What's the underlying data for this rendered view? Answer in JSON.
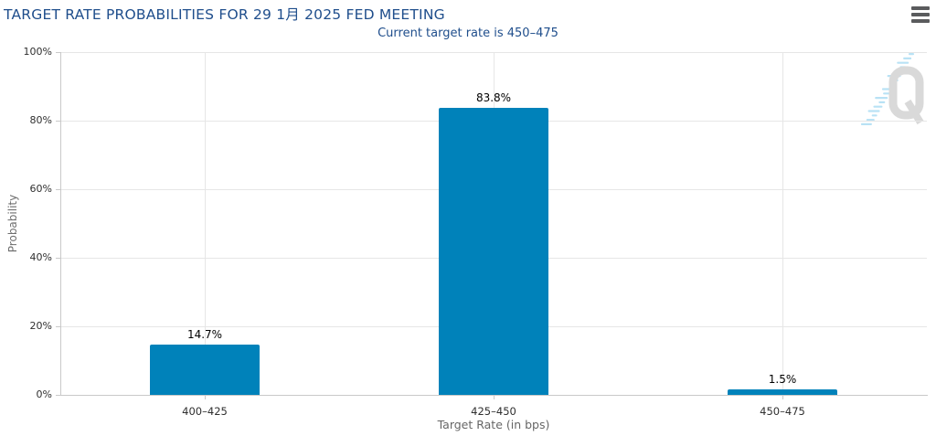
{
  "header": {
    "title": "TARGET RATE PROBABILITIES FOR 29 1月 2025 FED MEETING",
    "subtitle": "Current target rate is 450–475"
  },
  "menu": {
    "icon": "hamburger-icon"
  },
  "watermark": {
    "letter": "Q",
    "style": "gray outline Q with light-blue diagonal dashes"
  },
  "colors": {
    "bar": "#0082ba",
    "title_text": "#1f4e8c",
    "tick_text": "#2f2f2f",
    "axis_title_text": "#666666",
    "grid": "#e6e6e6",
    "axis_line": "#c9c9c9",
    "menu_icon": "#5a5b5d",
    "watermark_q": "#d9d9d9",
    "watermark_dashes": "#b9e2f5"
  },
  "chart_data": {
    "type": "bar",
    "title": "TARGET RATE PROBABILITIES FOR 29 1月 2025 FED MEETING",
    "subtitle": "Current target rate is 450–475",
    "categories": [
      "400–425",
      "425–450",
      "450–475"
    ],
    "values": [
      14.7,
      83.8,
      1.5
    ],
    "data_labels": [
      "14.7%",
      "83.8%",
      "1.5%"
    ],
    "xlabel": "Target Rate (in bps)",
    "ylabel": "Probability",
    "ylim": [
      0,
      100
    ],
    "yticks": [
      0,
      20,
      40,
      60,
      80,
      100
    ],
    "ytick_labels": [
      "0%",
      "20%",
      "40%",
      "60%",
      "80%",
      "100%"
    ],
    "grid": true,
    "legend": "none",
    "bar_color": "#0082ba"
  }
}
